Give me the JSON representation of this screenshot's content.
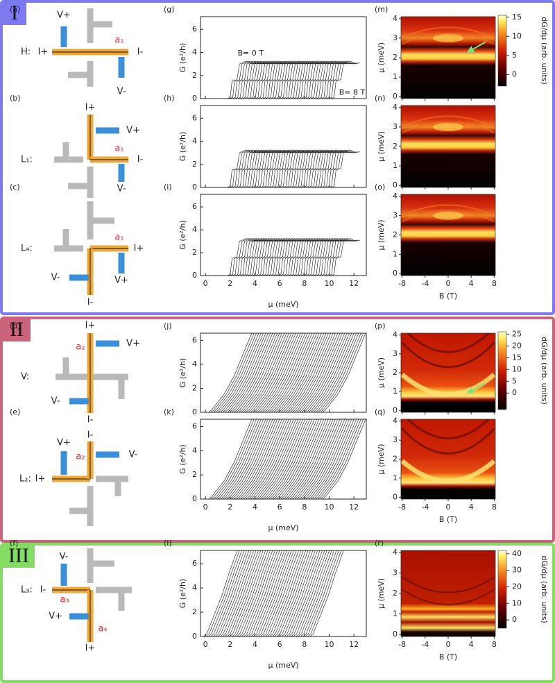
{
  "sections": [
    {
      "label": "I",
      "schematics": [
        {
          "panel": "(a)",
          "name": "H:",
          "labels": [
            "V+",
            "I+",
            "I-",
            "V-",
            "a₁"
          ]
        },
        {
          "panel": "(b)",
          "name": "L₁:",
          "labels": [
            "I+",
            "V+",
            "I-",
            "V-",
            "a₁"
          ]
        },
        {
          "panel": "(c)",
          "name": "L₄:",
          "labels": [
            "I+",
            "V-",
            "V+",
            "I-",
            "a₁"
          ]
        }
      ],
      "conductance": {
        "panels": [
          "(g)",
          "(h)",
          "(i)"
        ],
        "annotations": [
          "B= 0 T",
          "B= 8 T"
        ],
        "ylim": [
          0,
          7.1
        ],
        "yticks": [
          0,
          2,
          4,
          6
        ]
      },
      "maps": {
        "panels": [
          "(m)",
          "(n)",
          "(o)"
        ],
        "colorbar": {
          "lim": [
            -3,
            15.5
          ],
          "ticks": [
            0,
            5,
            10,
            15
          ]
        }
      }
    },
    {
      "label": "II",
      "schematics": [
        {
          "panel": "(d)",
          "name": "V:",
          "labels": [
            "I+",
            "a₂",
            "V+",
            "V-",
            "I-"
          ]
        },
        {
          "panel": "(e)",
          "name": "L₂:",
          "labels": [
            "I-",
            "V+",
            "a₂",
            "V-",
            "I+"
          ]
        }
      ],
      "conductance": {
        "panels": [
          "(j)",
          "(k)"
        ],
        "ylim": [
          0,
          6.6
        ],
        "yticks": [
          0,
          2,
          4,
          6
        ]
      },
      "maps": {
        "panels": [
          "(p)",
          "(q)"
        ],
        "colorbar": {
          "lim": [
            -7,
            26
          ],
          "ticks": [
            0,
            5,
            10,
            15,
            20,
            25
          ]
        }
      }
    },
    {
      "label": "III",
      "schematics": [
        {
          "panel": "(f)",
          "name": "L₃:",
          "labels": [
            "V-",
            "I-",
            "a₃",
            "V+",
            "a₄",
            "I+"
          ]
        }
      ],
      "conductance": {
        "panels": [
          "(l)"
        ],
        "ylim": [
          0,
          7.1
        ],
        "yticks": [
          0,
          2,
          4,
          6
        ]
      },
      "maps": {
        "panels": [
          "(r)"
        ],
        "colorbar": {
          "lim": [
            -5,
            42
          ],
          "ticks": [
            0,
            10,
            20,
            30,
            40
          ]
        }
      }
    }
  ],
  "common": {
    "g_label": "G (e²/h)",
    "mu_label": "μ (meV)",
    "b_label": "B (T)",
    "cbar_label": "dG/dμ (arb. units)",
    "mu_xlim": [
      -0.4,
      13
    ],
    "mu_xticks": [
      0,
      2,
      4,
      6,
      8,
      10,
      12
    ],
    "b_xlim": [
      -8.2,
      8.2
    ],
    "b_xticks": [
      -8,
      -4,
      0,
      4,
      8
    ],
    "map_ylim": [
      -0.1,
      4.1
    ],
    "map_yticks": [
      0,
      1,
      2,
      3,
      4
    ]
  }
}
